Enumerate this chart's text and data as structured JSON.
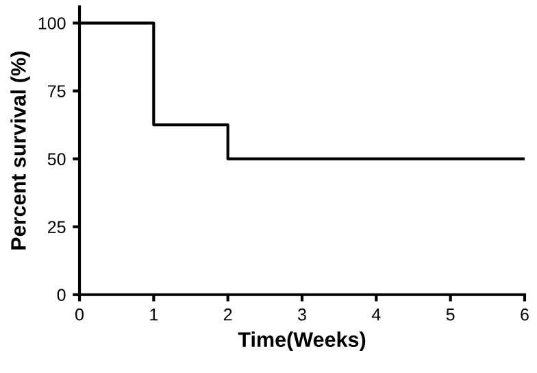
{
  "chart_data": {
    "type": "step",
    "xlabel": "Time(Weeks)",
    "ylabel": "Percent survival (%)",
    "x": [
      0,
      1,
      2,
      6
    ],
    "series": [
      {
        "color": "#000000",
        "values": [
          100,
          62.5,
          50,
          50
        ]
      }
    ],
    "xlim": [
      0,
      6
    ],
    "xticks": [
      0,
      1,
      2,
      3,
      4,
      5,
      6
    ],
    "ylim": [
      0,
      106
    ],
    "yticks": [
      0,
      25,
      50,
      75,
      100
    ],
    "grid": false,
    "marker": "none",
    "line_style": "solid"
  }
}
